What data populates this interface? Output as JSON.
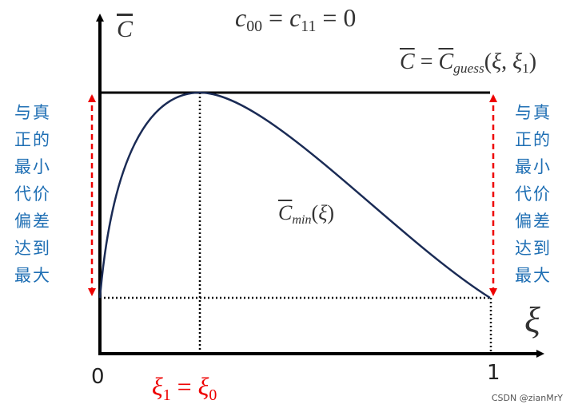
{
  "axes": {
    "y_label": [
      {
        "text": "C",
        "style": "over"
      }
    ],
    "x_label": "ξ",
    "x_ticks": [
      "0",
      "1"
    ]
  },
  "formulas": {
    "condition": [
      {
        "text": "c",
        "style": "italic"
      },
      {
        "text": "00",
        "style": "sub"
      },
      {
        "text": " = ",
        "style": "normal"
      },
      {
        "text": "c",
        "style": "italic"
      },
      {
        "text": "11",
        "style": "sub"
      },
      {
        "text": " = 0",
        "style": "normal"
      }
    ],
    "guess": [
      {
        "text": "C",
        "style": "over"
      },
      {
        "text": " = ",
        "style": "normal"
      },
      {
        "text": "C",
        "style": "over"
      },
      {
        "text": "guess",
        "style": "subi"
      },
      {
        "text": "(",
        "style": "normal"
      },
      {
        "text": "ξ",
        "style": "italic"
      },
      {
        "text": ", ",
        "style": "normal"
      },
      {
        "text": "ξ",
        "style": "italic"
      },
      {
        "text": "1",
        "style": "sub"
      },
      {
        "text": ")",
        "style": "normal"
      }
    ],
    "min_curve": [
      {
        "text": "C",
        "style": "over"
      },
      {
        "text": "min",
        "style": "subi"
      },
      {
        "text": "(",
        "style": "normal"
      },
      {
        "text": "ξ",
        "style": "italic"
      },
      {
        "text": ")",
        "style": "normal"
      }
    ],
    "optimum": [
      {
        "text": "ξ",
        "style": "italic"
      },
      {
        "text": "1",
        "style": "sub"
      },
      {
        "text": " = ",
        "style": "normal"
      },
      {
        "text": "ξ",
        "style": "italic"
      },
      {
        "text": "0",
        "style": "sub"
      }
    ]
  },
  "left_note": [
    "与真",
    "正的",
    "最小",
    "代价",
    "偏差",
    "达到",
    "最大"
  ],
  "right_note": [
    "与真",
    "正的",
    "最小",
    "代价",
    "偏差",
    "达到",
    "最大"
  ],
  "footer": "CSDN @zianMrY"
}
